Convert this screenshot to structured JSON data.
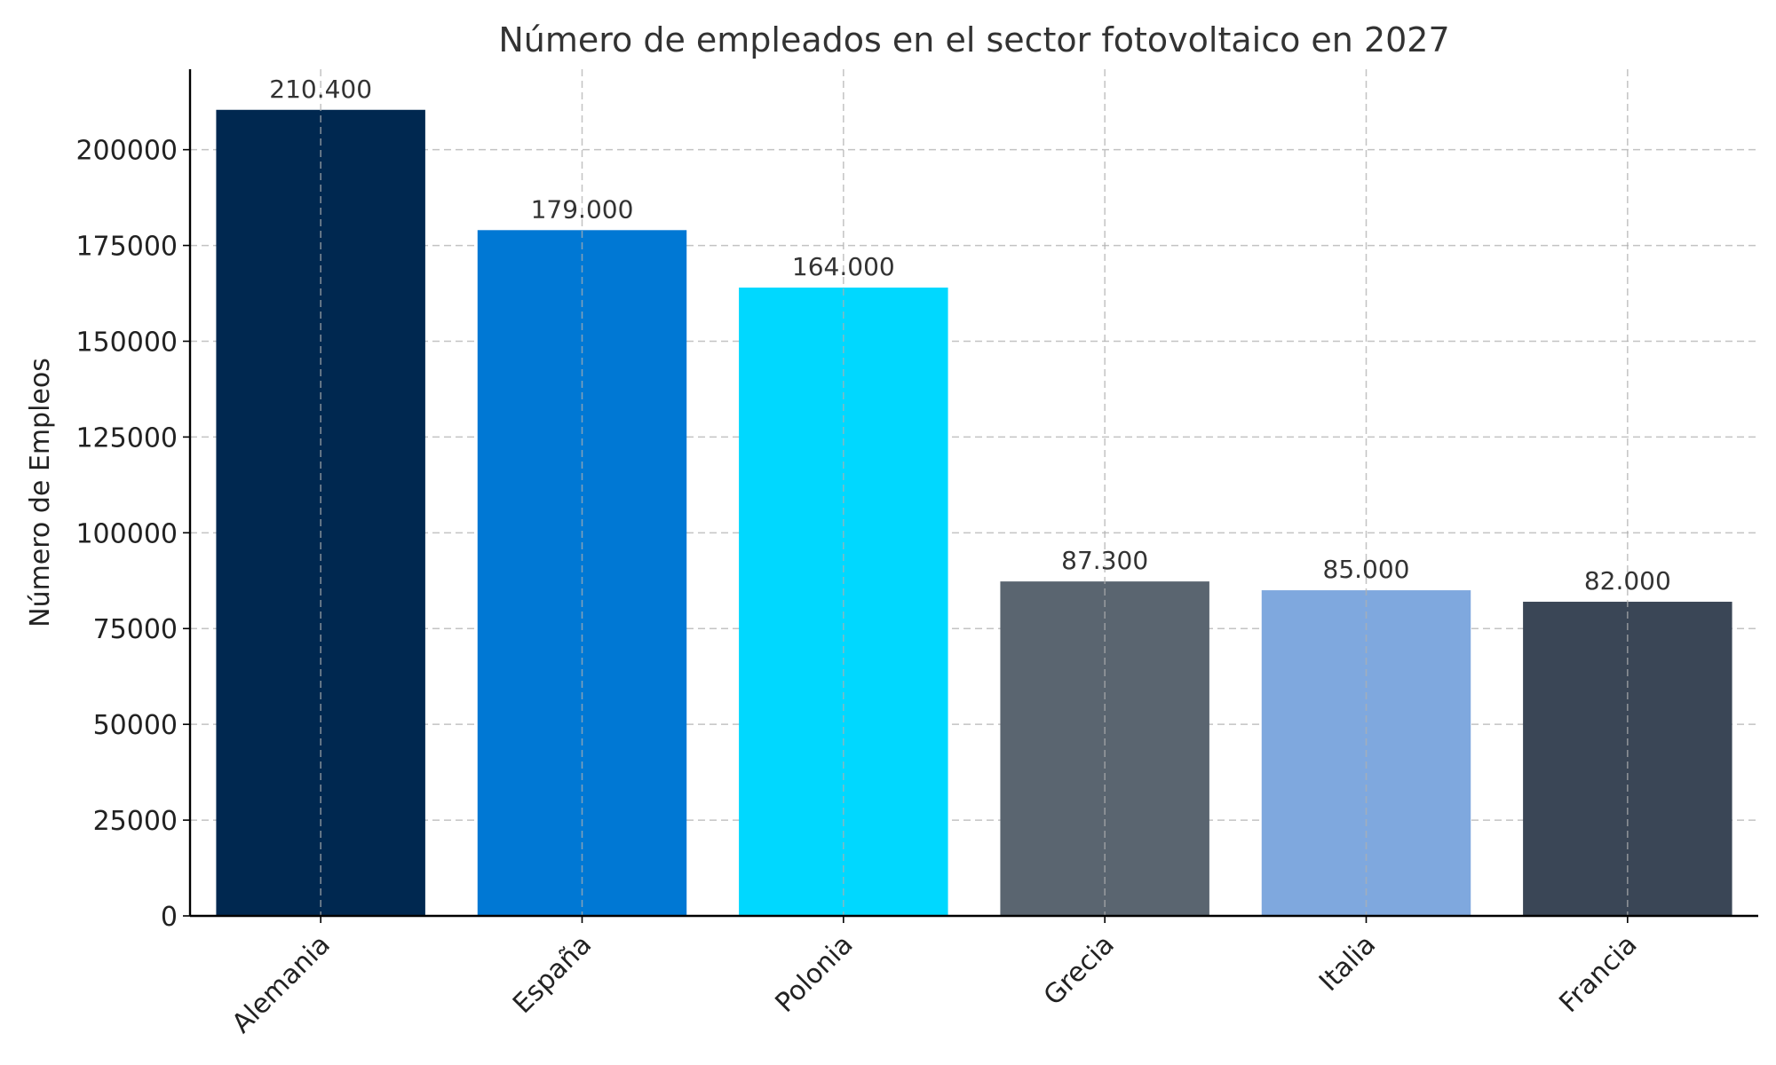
{
  "chart_data": {
    "type": "bar",
    "title": "Número de empleados en el sector fotovoltaico en 2027",
    "xlabel": "",
    "ylabel": "Número de Empleos",
    "categories": [
      "Alemania",
      "España",
      "Polonia",
      "Grecia",
      "Italia",
      "Francia"
    ],
    "values": [
      210400,
      179000,
      164000,
      87300,
      85000,
      82000
    ],
    "data_labels": [
      "210.400",
      "179.000",
      "164.000",
      "87.300",
      "85.000",
      "82.000"
    ],
    "colors": [
      "#002850",
      "#0078D4",
      "#00D8FF",
      "#5A6570",
      "#7FA8DE",
      "#3A4656"
    ],
    "ylim": [
      0,
      221000
    ],
    "yticks": [
      0,
      25000,
      50000,
      75000,
      100000,
      125000,
      150000,
      175000,
      200000
    ],
    "ytick_labels": [
      "0",
      "25000",
      "50000",
      "75000",
      "100000",
      "125000",
      "150000",
      "175000",
      "200000"
    ],
    "grid": true
  }
}
